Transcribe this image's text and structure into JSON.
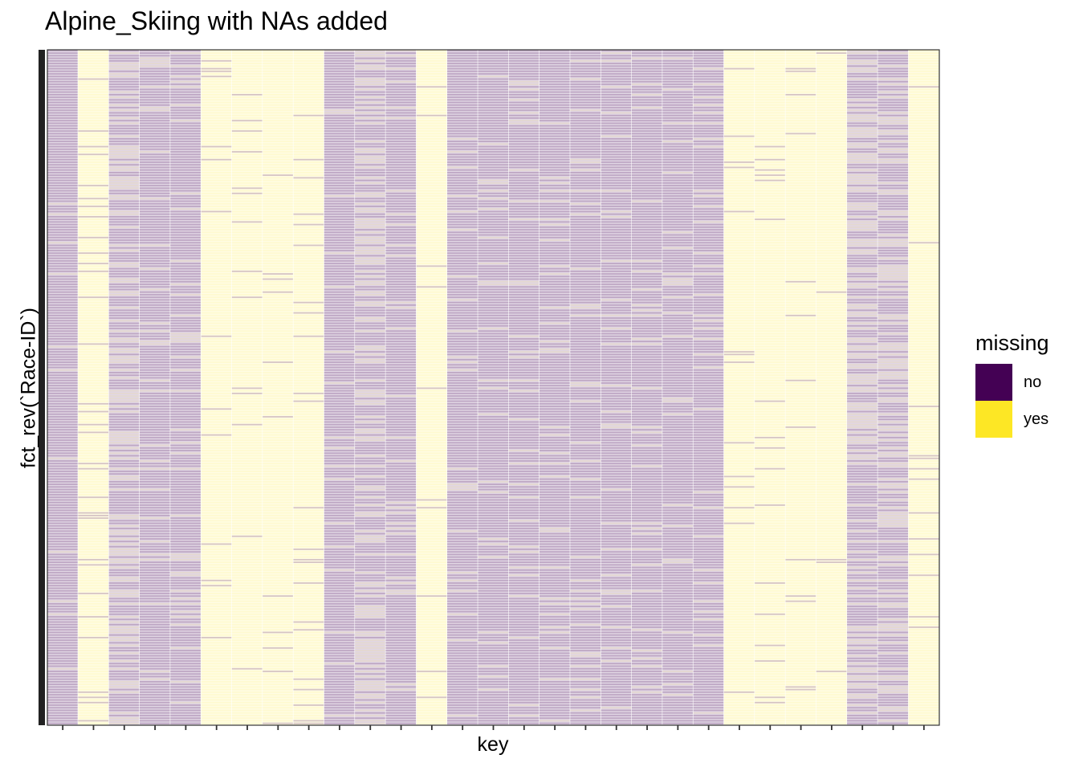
{
  "chart_data": {
    "type": "heatmap",
    "title": "Alpine_Skiing with NAs added",
    "xlabel": "key",
    "ylabel": "fct_rev(`Race-ID`)",
    "x_tick_labels_shown": false,
    "y_tick_labels_shown": false,
    "num_columns": 29,
    "legend": {
      "title": "missing",
      "position": "right",
      "items": [
        {
          "label": "no",
          "color": "#440154"
        },
        {
          "label": "yes",
          "color": "#FDE725"
        }
      ]
    },
    "column_missing_fraction": [
      0.05,
      0.85,
      0.45,
      0.1,
      0.1,
      0.95,
      0.95,
      0.95,
      0.95,
      0.1,
      0.5,
      0.1,
      0.95,
      0.1,
      0.1,
      0.1,
      0.1,
      0.1,
      0.1,
      0.1,
      0.1,
      0.1,
      0.95,
      0.95,
      0.95,
      0.95,
      0.4,
      0.4,
      0.95
    ]
  }
}
